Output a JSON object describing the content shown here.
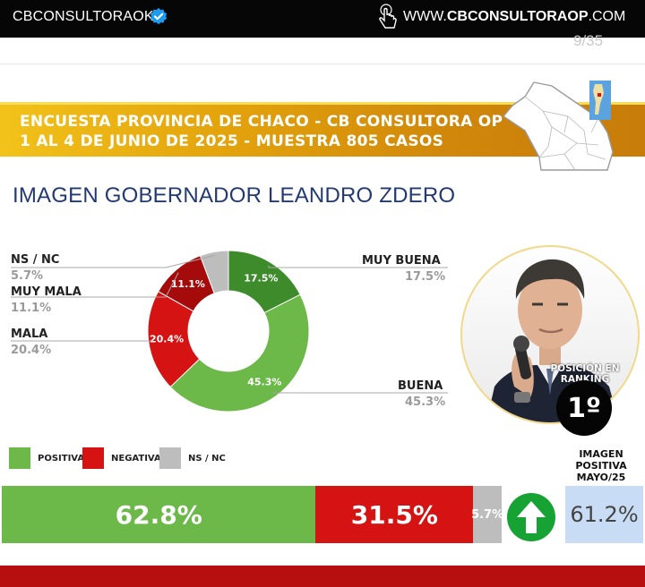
{
  "topbar": {
    "handle": "CBCONSULTORAOK",
    "site_prefix": "WWW.",
    "site_bold": "CBCONSULTORAOP",
    "site_suffix": ".COM"
  },
  "page_number": "9/35",
  "banner": {
    "line1": "ENCUESTA PROVINCIA DE CHACO - CB CONSULTORA OP",
    "line2": "1 AL 4 DE JUNIO DE 2025 - MUESTRA 805 CASOS"
  },
  "main_title": "IMAGEN GOBERNADOR  LEANDRO ZDERO",
  "ranking": {
    "label": "POSICIÓN EN RANKING",
    "position": "1º"
  },
  "side_title": [
    "IMAGEN",
    "POSITIVA",
    "MAYO/25"
  ],
  "previous_value": "61.2%",
  "colors": {
    "muy_buena": "#3e8b2c",
    "buena": "#6cb94a",
    "mala": "#d61313",
    "muy_mala": "#a50b0b",
    "nsnc": "#bdbdbd",
    "positiva": "#6cb94a",
    "negativa": "#d61313"
  },
  "chart_data": [
    {
      "type": "pie",
      "donut": true,
      "categories": [
        "MUY BUENA",
        "BUENA",
        "MALA",
        "MUY MALA",
        "NS / NC"
      ],
      "values": [
        17.5,
        45.3,
        20.4,
        11.1,
        5.7
      ],
      "value_labels": [
        "17.5%",
        "45.3%",
        "20.4%",
        "11.1%",
        "5.7%"
      ]
    },
    {
      "type": "bar",
      "stacked": true,
      "orientation": "horizontal",
      "categories": [
        "POSITIVA",
        "NEGATIVA",
        "NS / NC"
      ],
      "values": [
        62.8,
        31.5,
        5.7
      ],
      "value_labels": [
        "62.8%",
        "31.5%",
        "5.7%"
      ],
      "legend": [
        "POSITIVA",
        "NEGATIVA",
        "NS / NC"
      ]
    }
  ]
}
